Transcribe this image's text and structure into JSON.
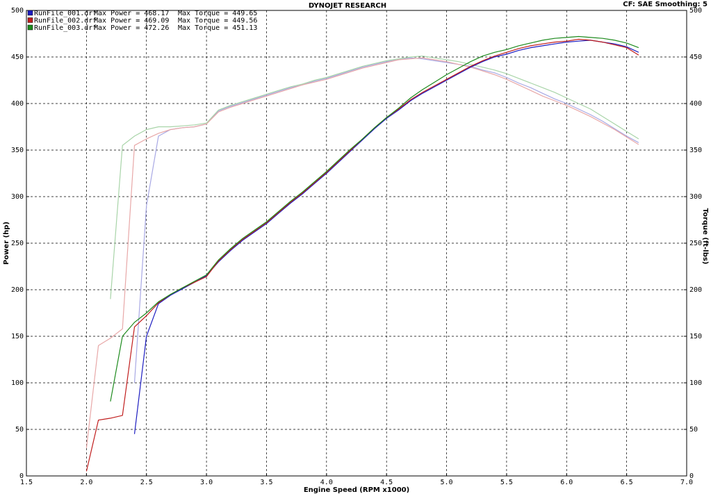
{
  "chart_data": {
    "type": "line",
    "title": "DYNOJET RESEARCH",
    "settings_label": "CF: SAE  Smoothing: 5",
    "x_label": "Engine Speed (RPM x1000)",
    "y_label": "Power (hp)",
    "y2_label": "Torque (ft-lbs)",
    "grid": true,
    "xlim": [
      1.5,
      7.0
    ],
    "xticks": [
      {
        "value": 1.5,
        "label": "1.5"
      },
      {
        "value": 2,
        "label": "2.0"
      },
      {
        "value": 2.5,
        "label": "2.5"
      },
      {
        "value": 3,
        "label": "3.0"
      },
      {
        "value": 3.5,
        "label": "3.5"
      },
      {
        "value": 4,
        "label": "4.0"
      },
      {
        "value": 4.5,
        "label": "4.5"
      },
      {
        "value": 5,
        "label": "5.0"
      },
      {
        "value": 5.5,
        "label": "5.5"
      },
      {
        "value": 6,
        "label": "6.0"
      },
      {
        "value": 6.5,
        "label": "6.5"
      },
      {
        "value": 7,
        "label": "7.0"
      }
    ],
    "ylim": [
      0,
      500
    ],
    "yticks": [
      0,
      50,
      100,
      150,
      200,
      250,
      300,
      350,
      400,
      450,
      500
    ],
    "y2lim": [
      0,
      500
    ],
    "y2ticks": [
      0,
      50,
      100,
      150,
      200,
      250,
      300,
      350,
      400,
      450,
      500
    ],
    "x": [
      2.0,
      2.1,
      2.2,
      2.3,
      2.4,
      2.5,
      2.6,
      2.7,
      2.8,
      2.9,
      3.0,
      3.1,
      3.2,
      3.3,
      3.4,
      3.5,
      3.6,
      3.7,
      3.8,
      3.9,
      4.0,
      4.1,
      4.2,
      4.3,
      4.4,
      4.5,
      4.6,
      4.7,
      4.8,
      4.9,
      5.0,
      5.1,
      5.2,
      5.3,
      5.4,
      5.5,
      5.6,
      5.7,
      5.8,
      5.9,
      6.0,
      6.1,
      6.2,
      6.3,
      6.4,
      6.5,
      6.6
    ],
    "runs": [
      {
        "file": "RunFile_001.drf",
        "max_power_label": "Max Power = 468.17",
        "max_torque_label": "Max Torque = 449.65",
        "color": "#1c1cc0",
        "torque_color": "#a8a8e4",
        "power": [
          null,
          null,
          null,
          null,
          45,
          150,
          185,
          194,
          201,
          208,
          215,
          230,
          242,
          253,
          262,
          271,
          282,
          293,
          303,
          314,
          325,
          337,
          349,
          361,
          373,
          384,
          393,
          403,
          411,
          418,
          425,
          432,
          439,
          445,
          450,
          453,
          457,
          460,
          462,
          464,
          466,
          467,
          468,
          466,
          464,
          461,
          455
        ],
        "torque": [
          null,
          null,
          null,
          null,
          100,
          290,
          365,
          372,
          374,
          375,
          378,
          392,
          397,
          401,
          405,
          409,
          413,
          417,
          420,
          424,
          427,
          431,
          435,
          439,
          442,
          445,
          447,
          449,
          448,
          446,
          444,
          442,
          440,
          436,
          433,
          428,
          422,
          417,
          411,
          405,
          400,
          394,
          388,
          381,
          373,
          365,
          358
        ]
      },
      {
        "file": "RunFile_002.drf",
        "max_power_label": "Max Power = 469.09",
        "max_torque_label": "Max Torque = 449.56",
        "color": "#c01c1c",
        "torque_color": "#e8a8a8",
        "power": [
          5,
          60,
          62,
          65,
          160,
          172,
          186,
          195,
          202,
          208,
          214,
          231,
          243,
          254,
          263,
          272,
          283,
          294,
          304,
          315,
          326,
          338,
          350,
          362,
          374,
          385,
          394,
          404,
          412,
          419,
          426,
          433,
          440,
          446,
          451,
          455,
          459,
          462,
          464,
          466,
          467,
          469,
          468,
          466,
          463,
          460,
          452
        ],
        "torque": [
          30,
          140,
          148,
          158,
          355,
          362,
          368,
          372,
          374,
          375,
          378,
          391,
          396,
          400,
          404,
          408,
          412,
          416,
          420,
          423,
          426,
          430,
          434,
          438,
          441,
          444,
          447,
          448,
          449,
          447,
          445,
          442,
          439,
          435,
          431,
          426,
          420,
          414,
          408,
          403,
          398,
          392,
          386,
          379,
          372,
          364,
          356
        ]
      },
      {
        "file": "RunFile_003.drf",
        "max_power_label": "Max Power = 472.26",
        "max_torque_label": "Max Torque = 451.13",
        "color": "#1c8a1c",
        "torque_color": "#a8d4a8",
        "power": [
          null,
          null,
          80,
          150,
          165,
          175,
          187,
          195,
          202,
          209,
          216,
          232,
          244,
          255,
          264,
          273,
          284,
          295,
          305,
          316,
          327,
          339,
          351,
          362,
          374,
          385,
          395,
          406,
          415,
          423,
          431,
          438,
          445,
          451,
          455,
          458,
          462,
          465,
          468,
          470,
          471,
          472,
          471,
          470,
          468,
          465,
          460
        ],
        "torque": [
          null,
          null,
          190,
          355,
          365,
          372,
          375,
          375,
          376,
          377,
          379,
          393,
          398,
          402,
          406,
          410,
          414,
          418,
          421,
          425,
          428,
          432,
          436,
          440,
          443,
          446,
          448,
          450,
          451,
          449,
          447,
          445,
          442,
          439,
          436,
          432,
          427,
          422,
          417,
          412,
          406,
          400,
          394,
          386,
          378,
          370,
          362
        ]
      }
    ]
  }
}
